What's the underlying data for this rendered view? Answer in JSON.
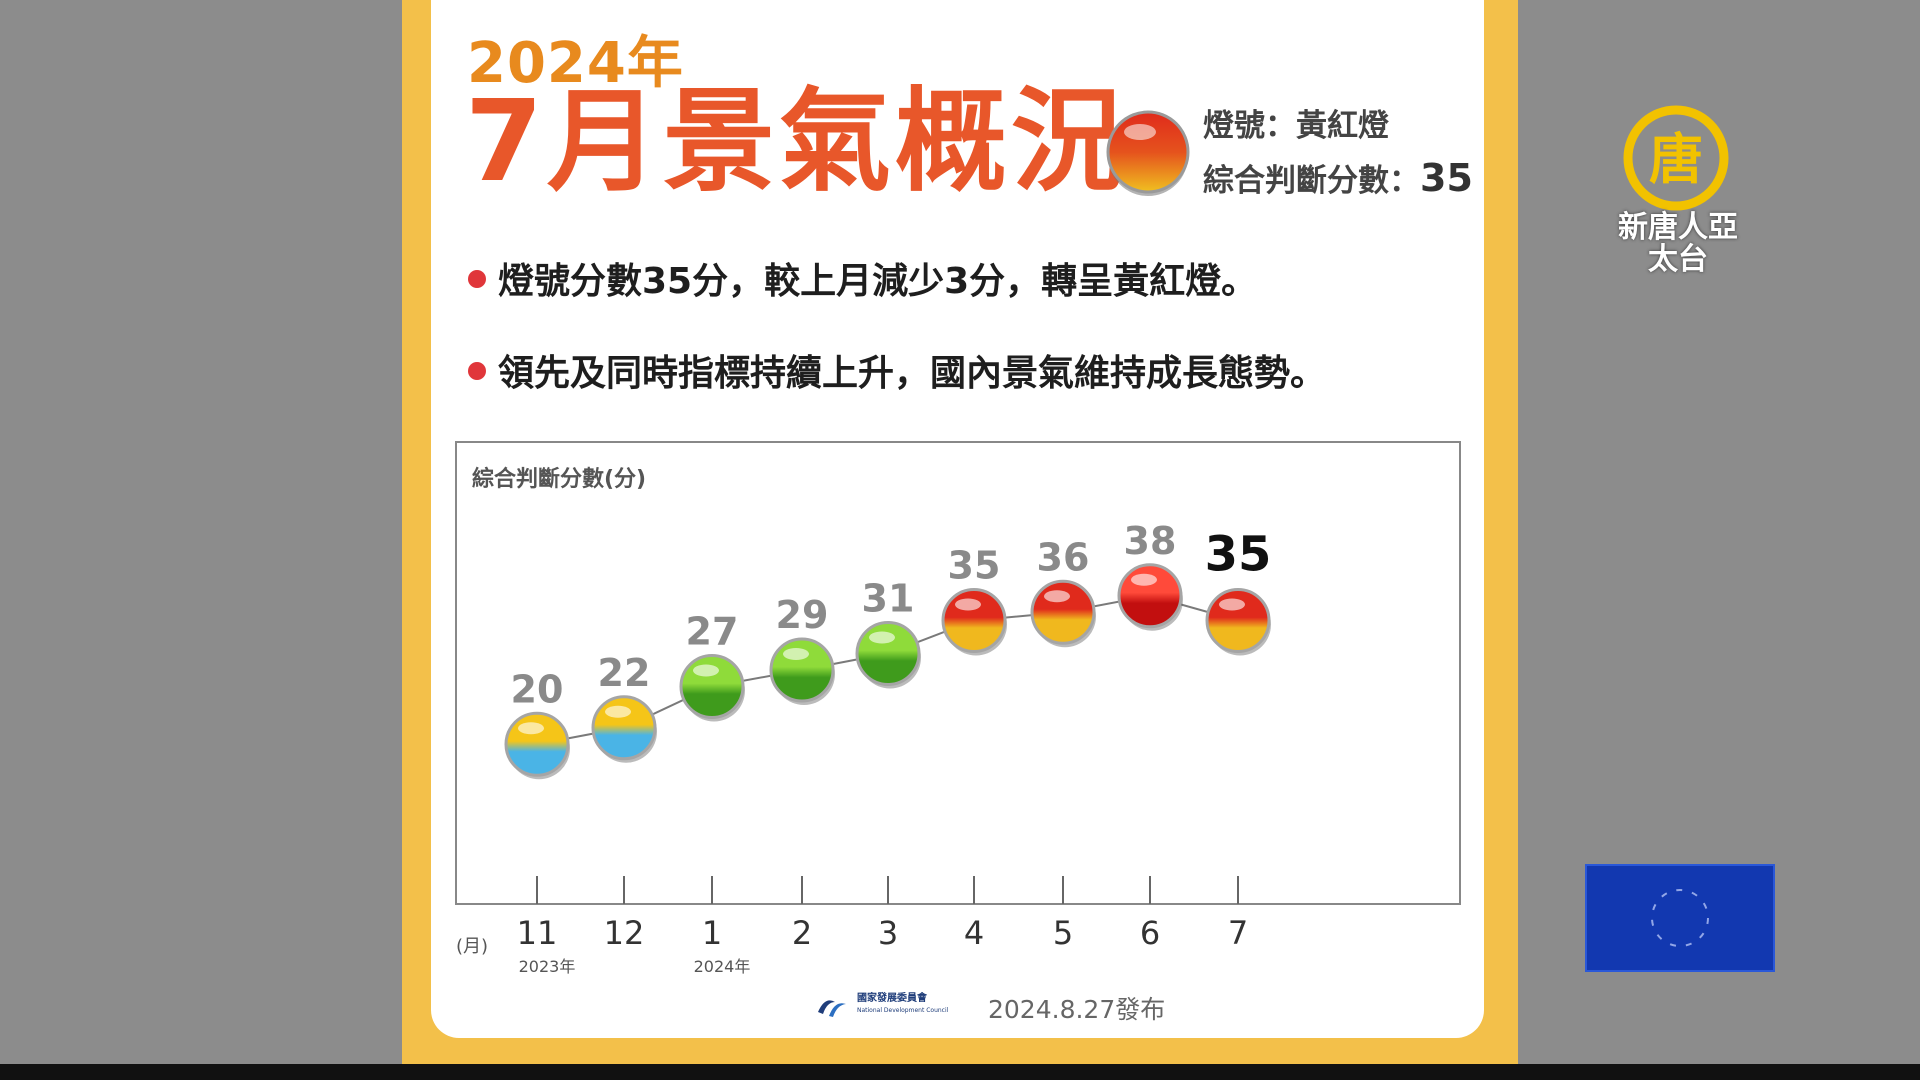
{
  "header": {
    "year": "2024年",
    "title": "7月景氣概況",
    "light_label": "燈號：黃紅燈",
    "score_label": "綜合判斷分數：",
    "score_value": "35"
  },
  "bullets": [
    "燈號分數35分，較上月減少3分，轉呈黃紅燈。",
    "領先及同時指標持續上升，國內景氣維持成長態勢。"
  ],
  "chart_data": {
    "type": "line",
    "ylabel": "綜合判斷分數(分)",
    "xunit_label": "(月)",
    "categories": [
      "11",
      "12",
      "1",
      "2",
      "3",
      "4",
      "5",
      "6",
      "7"
    ],
    "year_labels": [
      {
        "index": 0,
        "text": "2023年"
      },
      {
        "index": 2,
        "text": "2024年"
      }
    ],
    "values": [
      20,
      22,
      27,
      29,
      31,
      35,
      36,
      38,
      35
    ],
    "signals": [
      "yellow-blue",
      "yellow-blue",
      "green",
      "green",
      "green",
      "yellow-red",
      "yellow-red",
      "red",
      "yellow-red"
    ],
    "highlight_index": 8
  },
  "colors": {
    "yellow-blue": [
      "#f5c518",
      "#4ab4e6"
    ],
    "green": [
      "#8fdb3a",
      "#3f9b1c"
    ],
    "yellow-red": [
      "#e02a1c",
      "#f0b81e"
    ],
    "red": [
      "#ff4a3a",
      "#c20f0f"
    ]
  },
  "footer": {
    "agency_name": "國家發展委員會",
    "agency_name_en": "National Development Council",
    "release": "2024.8.27發布"
  },
  "watermark": {
    "logo_char": "唐",
    "channel_name": "新唐人亞太台"
  }
}
